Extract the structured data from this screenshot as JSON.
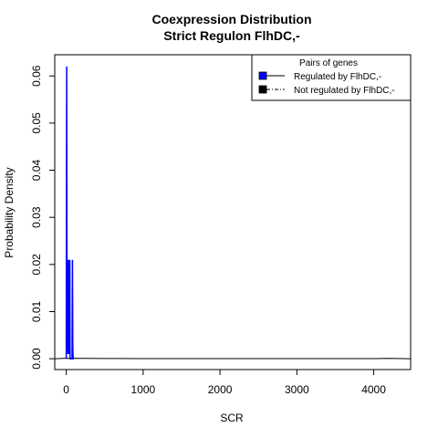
{
  "chart_data": {
    "type": "line",
    "title_line1": "Coexpression Distribution",
    "title_line2": "Strict Regulon FlhDC,-",
    "xlabel": "SCR",
    "ylabel": "Probability Density",
    "xlim": [
      -150,
      4480
    ],
    "ylim": [
      -0.0023,
      0.0645
    ],
    "x_ticks": [
      0,
      1000,
      2000,
      3000,
      4000
    ],
    "y_ticks": [
      0.0,
      0.01,
      0.02,
      0.03,
      0.04,
      0.05,
      0.06
    ],
    "y_tick_labels": [
      "0.00",
      "0.01",
      "0.02",
      "0.03",
      "0.04",
      "0.05",
      "0.06"
    ],
    "legend": {
      "title": "Pairs of genes",
      "placement": "top-right",
      "entries": [
        {
          "label": "Regulated by  FlhDC,-",
          "color": "#0000ff"
        },
        {
          "label": "Not regulated by  FlhDC,-",
          "color": "#000000"
        }
      ]
    },
    "series": [
      {
        "name": "Regulated by  FlhDC,-",
        "color": "#0000ff",
        "x": [
          0,
          2,
          5,
          10,
          15,
          20,
          23,
          26,
          30,
          34,
          38,
          42,
          46,
          50,
          60,
          70,
          75,
          80,
          85,
          90,
          95,
          100
        ],
        "y": [
          0,
          0.03,
          0.062,
          0.002,
          0.021,
          0.001,
          0.021,
          0.002,
          0.021,
          0.001,
          0.021,
          0.002,
          0.021,
          0,
          0,
          0,
          0,
          0.021,
          0.002,
          0,
          0,
          0
        ]
      },
      {
        "name": "Not regulated by  FlhDC,-",
        "color": "#000000",
        "x": [
          -150,
          0,
          500,
          1000,
          2000,
          3000,
          4000,
          4200,
          4480
        ],
        "y": [
          0,
          0.0001,
          5e-05,
          3e-05,
          2e-05,
          2e-05,
          2e-05,
          6e-05,
          0
        ]
      }
    ]
  }
}
